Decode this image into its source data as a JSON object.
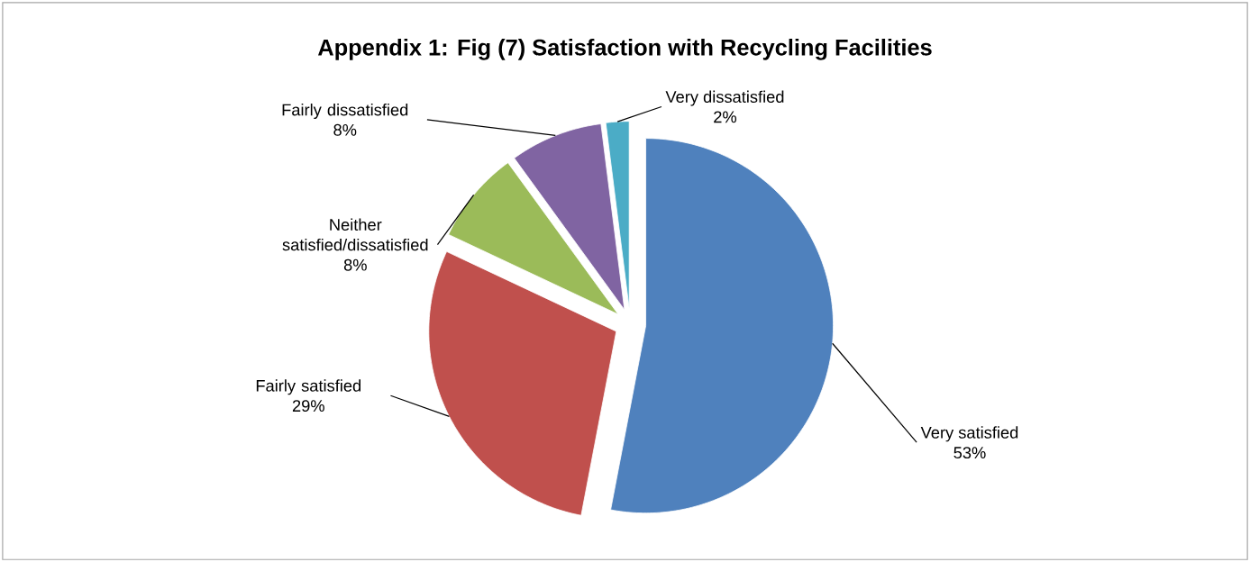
{
  "chart_data": {
    "type": "pie",
    "title": "Appendix 1: Fig (7) Satisfaction with Recycling Facilities",
    "categories": [
      "Very satisfied",
      "Fairly satisfied",
      "Neither satisfied/dissatisfied",
      "Fairly dissatisfied",
      "Very dissatisfied"
    ],
    "values": [
      53,
      29,
      8,
      8,
      2
    ],
    "value_labels": [
      "53%",
      "29%",
      "8%",
      "8%",
      "2%"
    ],
    "colors": [
      "#4f81bd",
      "#c0504d",
      "#9bbb59",
      "#8064a2",
      "#4bacc6"
    ]
  }
}
